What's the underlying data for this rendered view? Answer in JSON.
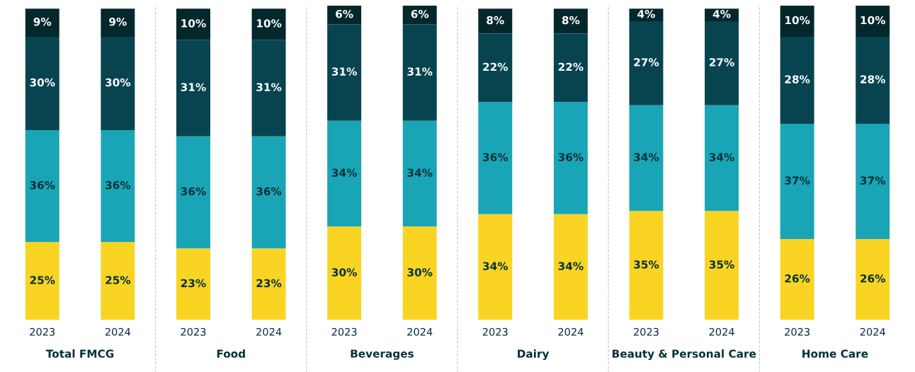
{
  "chart_data": {
    "type": "bar",
    "stacked": true,
    "legend": false,
    "grid": false,
    "categories": [
      "2023",
      "2024",
      "2023",
      "2024",
      "2023",
      "2024",
      "2023",
      "2024",
      "2023",
      "2024",
      "2023",
      "2024"
    ],
    "series": [
      {
        "color": "#f9d423",
        "values": [
          25,
          25,
          23,
          23,
          30,
          30,
          34,
          34,
          35,
          35,
          26,
          26
        ],
        "value_labels": [
          "25%",
          "25%",
          "23%",
          "23%",
          "30%",
          "30%",
          "34%",
          "34%",
          "35%",
          "35%",
          "26%",
          "26%"
        ]
      },
      {
        "color": "#1aa5b6",
        "values": [
          36,
          36,
          36,
          36,
          34,
          34,
          36,
          36,
          34,
          34,
          37,
          37
        ],
        "value_labels": [
          "36%",
          "36%",
          "36%",
          "36%",
          "34%",
          "34%",
          "36%",
          "36%",
          "34%",
          "34%",
          "37%",
          "37%"
        ]
      },
      {
        "color": "#07444f",
        "values": [
          30,
          30,
          31,
          31,
          31,
          31,
          22,
          22,
          27,
          27,
          28,
          28
        ],
        "value_labels": [
          "30%",
          "30%",
          "31%",
          "31%",
          "31%",
          "31%",
          "22%",
          "22%",
          "27%",
          "27%",
          "28%",
          "28%"
        ]
      },
      {
        "color": "#04272b",
        "values": [
          9,
          9,
          10,
          10,
          6,
          6,
          8,
          8,
          4,
          4,
          10,
          10
        ],
        "value_labels": [
          "9%",
          "9%",
          "10%",
          "10%",
          "6%",
          "6%",
          "8%",
          "8%",
          "4%",
          "4%",
          "10%",
          "10%"
        ]
      }
    ],
    "annotations": [
      "Total FMCG",
      "Food",
      "Beverages",
      "Dairy",
      "Beauty & Personal Care",
      "Home Care"
    ]
  }
}
